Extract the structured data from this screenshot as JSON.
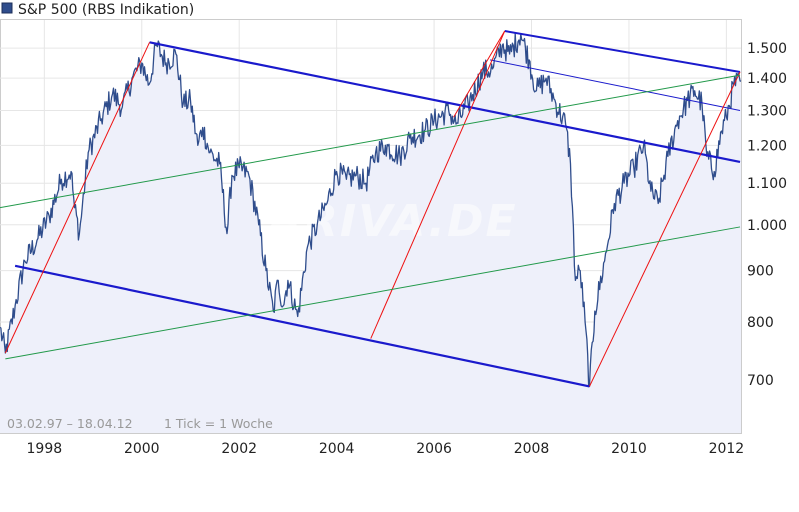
{
  "legend": {
    "label": "S&P 500 (RBS Indikation)",
    "swatch_color": "#2f4d8c"
  },
  "footer": {
    "range_text": "03.02.97 – 18.04.12",
    "tick_text": "1 Tick = 1 Woche"
  },
  "watermark": "ARIVA.DE",
  "colors": {
    "price_line": "#2f4d8c",
    "area_fill": "#eef0fa",
    "channel_blue": "#1a1acc",
    "red": "#ee1111",
    "green": "#22994a",
    "grid": "#e6e6e6",
    "border": "#cccccc"
  },
  "chart_data": {
    "type": "line",
    "title": "S&P 500 (RBS Indikation)",
    "scale": "log",
    "y_ticks": [
      700,
      800,
      900,
      1000,
      1100,
      1200,
      1300,
      1400,
      1500
    ],
    "y_tick_labels": [
      "700",
      "800",
      "900",
      "1.000",
      "1.100",
      "1.200",
      "1.300",
      "1.400",
      "1.500"
    ],
    "x_ticks": [
      1998,
      2000,
      2002,
      2004,
      2006,
      2008,
      2010,
      2012
    ],
    "x_tick_labels": [
      "1998",
      "2000",
      "2002",
      "2004",
      "2006",
      "2008",
      "2010",
      "2012"
    ],
    "xlim": [
      1997.09,
      2012.3
    ],
    "ylim": [
      620,
      1600
    ],
    "series": [
      {
        "anchors": [
          [
            1997.09,
            790
          ],
          [
            1997.2,
            745
          ],
          [
            1997.4,
            830
          ],
          [
            1997.6,
            920
          ],
          [
            1997.85,
            965
          ],
          [
            1998.1,
            1020
          ],
          [
            1998.35,
            1110
          ],
          [
            1998.55,
            1130
          ],
          [
            1998.62,
            1040
          ],
          [
            1998.72,
            980
          ],
          [
            1998.9,
            1180
          ],
          [
            1999.15,
            1270
          ],
          [
            1999.4,
            1350
          ],
          [
            1999.6,
            1310
          ],
          [
            1999.8,
            1400
          ],
          [
            2000.0,
            1450
          ],
          [
            2000.15,
            1380
          ],
          [
            2000.3,
            1510
          ],
          [
            2000.5,
            1450
          ],
          [
            2000.7,
            1480
          ],
          [
            2000.85,
            1320
          ],
          [
            2001.0,
            1330
          ],
          [
            2001.15,
            1200
          ],
          [
            2001.25,
            1250
          ],
          [
            2001.4,
            1180
          ],
          [
            2001.6,
            1150
          ],
          [
            2001.75,
            980
          ],
          [
            2001.85,
            1120
          ],
          [
            2002.0,
            1140
          ],
          [
            2002.2,
            1120
          ],
          [
            2002.4,
            1000
          ],
          [
            2002.55,
            900
          ],
          [
            2002.7,
            820
          ],
          [
            2002.8,
            880
          ],
          [
            2002.9,
            830
          ],
          [
            2003.0,
            880
          ],
          [
            2003.2,
            810
          ],
          [
            2003.4,
            950
          ],
          [
            2003.6,
            1000
          ],
          [
            2003.8,
            1050
          ],
          [
            2004.0,
            1130
          ],
          [
            2004.2,
            1110
          ],
          [
            2004.4,
            1120
          ],
          [
            2004.6,
            1100
          ],
          [
            2004.8,
            1180
          ],
          [
            2005.0,
            1200
          ],
          [
            2005.3,
            1170
          ],
          [
            2005.5,
            1220
          ],
          [
            2005.8,
            1240
          ],
          [
            2006.0,
            1270
          ],
          [
            2006.3,
            1300
          ],
          [
            2006.45,
            1260
          ],
          [
            2006.7,
            1320
          ],
          [
            2007.0,
            1420
          ],
          [
            2007.2,
            1430
          ],
          [
            2007.4,
            1510
          ],
          [
            2007.55,
            1480
          ],
          [
            2007.78,
            1550
          ],
          [
            2007.95,
            1460
          ],
          [
            2008.1,
            1360
          ],
          [
            2008.3,
            1400
          ],
          [
            2008.5,
            1320
          ],
          [
            2008.7,
            1260
          ],
          [
            2008.8,
            1150
          ],
          [
            2008.9,
            880
          ],
          [
            2009.0,
            900
          ],
          [
            2009.1,
            800
          ],
          [
            2009.19,
            690
          ],
          [
            2009.3,
            820
          ],
          [
            2009.5,
            920
          ],
          [
            2009.7,
            1050
          ],
          [
            2009.9,
            1100
          ],
          [
            2010.1,
            1140
          ],
          [
            2010.3,
            1200
          ],
          [
            2010.45,
            1080
          ],
          [
            2010.6,
            1050
          ],
          [
            2010.8,
            1170
          ],
          [
            2011.0,
            1270
          ],
          [
            2011.2,
            1330
          ],
          [
            2011.35,
            1360
          ],
          [
            2011.5,
            1320
          ],
          [
            2011.6,
            1170
          ],
          [
            2011.75,
            1130
          ],
          [
            2011.9,
            1240
          ],
          [
            2012.0,
            1280
          ],
          [
            2012.15,
            1380
          ],
          [
            2012.3,
            1390
          ]
        ]
      }
    ],
    "trendlines": [
      {
        "color": "channel_blue",
        "width": 2.2,
        "from": [
          2000.16,
          1520
        ],
        "to": [
          2012.28,
          1155
        ]
      },
      {
        "color": "channel_blue",
        "width": 2.2,
        "from": [
          1997.4,
          910
        ],
        "to": [
          2009.19,
          690
        ]
      },
      {
        "color": "channel_blue",
        "width": 2.0,
        "from": [
          2007.45,
          1560
        ],
        "to": [
          2012.28,
          1420
        ]
      },
      {
        "color": "channel_blue",
        "width": 1.0,
        "from": [
          2007.15,
          1460
        ],
        "to": [
          2012.28,
          1300
        ]
      },
      {
        "color": "red",
        "width": 1.0,
        "from": [
          1997.2,
          745
        ],
        "to": [
          2000.16,
          1520
        ]
      },
      {
        "color": "red",
        "width": 1.0,
        "from": [
          2004.7,
          770
        ],
        "to": [
          2007.45,
          1560
        ]
      },
      {
        "color": "red",
        "width": 1.0,
        "from": [
          2009.19,
          690
        ],
        "to": [
          2012.28,
          1420
        ]
      },
      {
        "color": "red",
        "width": 1.0,
        "from": [
          2006.4,
          1280
        ],
        "to": [
          2007.45,
          1560
        ]
      },
      {
        "color": "green",
        "width": 1.0,
        "from": [
          1997.09,
          1040
        ],
        "to": [
          2012.28,
          1410
        ]
      },
      {
        "color": "green",
        "width": 1.0,
        "from": [
          1997.2,
          735
        ],
        "to": [
          2012.28,
          995
        ]
      }
    ]
  }
}
